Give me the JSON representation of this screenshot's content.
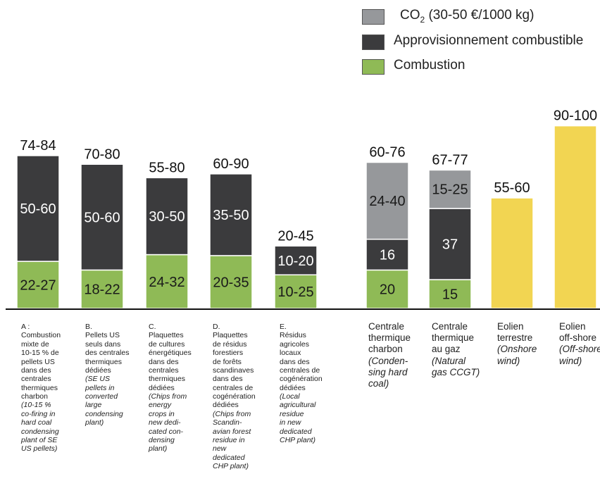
{
  "colors": {
    "co2": "#96989b",
    "supply": "#3b3b3d",
    "combustion": "#8fba56",
    "wind": "#f2d552"
  },
  "legend": [
    {
      "key": "co2",
      "label": "CO",
      "sub": "2",
      "label_rest": " (30-50  €/1000 kg)"
    },
    {
      "key": "supply",
      "label": "Approvisionnement combustible"
    },
    {
      "key": "combustion",
      "label": "Combustion"
    }
  ],
  "chart_data": {
    "type": "bar",
    "stacked": true,
    "grid": false,
    "categories": [
      "A",
      "B",
      "C",
      "D",
      "E",
      "Centrale thermique charbon",
      "Centrale thermique au gaz",
      "Eolien terrestre",
      "Eolien off-shore"
    ],
    "series": [
      {
        "name": "Combustion",
        "key": "combustion",
        "values": [
          24.5,
          20,
          28,
          27.5,
          17.5,
          20,
          15,
          null,
          null
        ],
        "labels": [
          "22-27",
          "18-22",
          "24-32",
          "20-35",
          "10-25",
          "20",
          "15",
          "",
          ""
        ]
      },
      {
        "name": "Approvisionnement combustible",
        "key": "supply",
        "values": [
          55,
          55,
          40,
          42.5,
          15,
          16,
          37,
          null,
          null
        ],
        "labels": [
          "50-60",
          "50-60",
          "30-50",
          "35-50",
          "10-20",
          "16",
          "37",
          "",
          ""
        ]
      },
      {
        "name": "CO2 (30-50 €/1000 kg)",
        "key": "co2",
        "values": [
          null,
          null,
          null,
          null,
          null,
          40,
          20,
          null,
          null
        ],
        "labels": [
          "",
          "",
          "",
          "",
          "",
          "24-40",
          "15-25",
          "",
          ""
        ]
      },
      {
        "name": "Eolien",
        "key": "wind",
        "values": [
          null,
          null,
          null,
          null,
          null,
          null,
          null,
          57.5,
          95
        ],
        "labels": [
          "",
          "",
          "",
          "",
          "",
          "",
          "",
          "",
          ""
        ]
      }
    ],
    "totals": [
      "74-84",
      "70-80",
      "55-80",
      "60-90",
      "20-45",
      "60-76",
      "67-77",
      "55-60",
      "90-100"
    ],
    "ylim": [
      0,
      100
    ]
  },
  "category_labels": [
    {
      "size": "small",
      "lines": [
        {
          "t": "A :",
          "i": false
        },
        {
          "t": "Combustion",
          "i": false
        },
        {
          "t": "mixte de",
          "i": false
        },
        {
          "t": "10-15 % de",
          "i": false
        },
        {
          "t": "pellets US",
          "i": false
        },
        {
          "t": "dans des",
          "i": false
        },
        {
          "t": "centrales",
          "i": false
        },
        {
          "t": "thermiques",
          "i": false
        },
        {
          "t": "charbon",
          "i": false
        },
        {
          "t": "(10-15 %",
          "i": true
        },
        {
          "t": "co-firing in",
          "i": true
        },
        {
          "t": "hard coal",
          "i": true
        },
        {
          "t": "condensing",
          "i": true
        },
        {
          "t": "plant of SE",
          "i": true
        },
        {
          "t": "US pellets)",
          "i": true
        }
      ]
    },
    {
      "size": "small",
      "lines": [
        {
          "t": "B.",
          "i": false
        },
        {
          "t": "Pellets US",
          "i": false
        },
        {
          "t": "seuls dans",
          "i": false
        },
        {
          "t": "des centrales",
          "i": false
        },
        {
          "t": " thermiques",
          "i": false
        },
        {
          "t": "dédiées",
          "i": false
        },
        {
          "t": "(SE US",
          "i": true
        },
        {
          "t": "pellets in",
          "i": true
        },
        {
          "t": "converted",
          "i": true
        },
        {
          "t": "large",
          "i": true
        },
        {
          "t": "condensing",
          "i": true
        },
        {
          "t": "plant)",
          "i": true
        }
      ]
    },
    {
      "size": "small",
      "lines": [
        {
          "t": "C.",
          "i": false
        },
        {
          "t": "Plaquettes",
          "i": false
        },
        {
          "t": "de cultures",
          "i": false
        },
        {
          "t": "énergétiques",
          "i": false
        },
        {
          "t": "dans des",
          "i": false
        },
        {
          "t": "centrales",
          "i": false
        },
        {
          "t": "thermiques",
          "i": false
        },
        {
          "t": "dédiées",
          "i": false
        },
        {
          "t": "(Chips from",
          "i": true
        },
        {
          "t": "energy",
          "i": true
        },
        {
          "t": "crops in",
          "i": true
        },
        {
          "t": "new dedi-",
          "i": true
        },
        {
          "t": "cated con-",
          "i": true
        },
        {
          "t": "densing",
          "i": true
        },
        {
          "t": "plant)",
          "i": true
        }
      ]
    },
    {
      "size": "small",
      "lines": [
        {
          "t": "D.",
          "i": false
        },
        {
          "t": "Plaquettes",
          "i": false
        },
        {
          "t": "de résidus",
          "i": false
        },
        {
          "t": "forestiers",
          "i": false
        },
        {
          "t": "de forêts",
          "i": false
        },
        {
          "t": "scandinaves",
          "i": false
        },
        {
          "t": "dans des",
          "i": false
        },
        {
          "t": "centrales de",
          "i": false
        },
        {
          "t": " cogénération",
          "i": false
        },
        {
          "t": "dédiées",
          "i": false
        },
        {
          "t": "(Chips from",
          "i": true
        },
        {
          "t": "Scandin-",
          "i": true
        },
        {
          "t": "avian forest",
          "i": true
        },
        {
          "t": "residue in",
          "i": true
        },
        {
          "t": "new",
          "i": true
        },
        {
          "t": "dedicated",
          "i": true
        },
        {
          "t": "CHP plant)",
          "i": true
        }
      ]
    },
    {
      "size": "small",
      "lines": [
        {
          "t": "E.",
          "i": false
        },
        {
          "t": "Résidus",
          "i": false
        },
        {
          "t": "agricoles",
          "i": false
        },
        {
          "t": "locaux",
          "i": false
        },
        {
          "t": "dans des",
          "i": false
        },
        {
          "t": "centrales de",
          "i": false
        },
        {
          "t": "cogénération",
          "i": false
        },
        {
          "t": "dédiées",
          "i": false
        },
        {
          "t": "(Local",
          "i": true
        },
        {
          "t": "agricultural",
          "i": true
        },
        {
          "t": "residue",
          "i": true
        },
        {
          "t": "in new",
          "i": true
        },
        {
          "t": "dedicated",
          "i": true
        },
        {
          "t": "CHP plant)",
          "i": true
        }
      ]
    },
    {
      "size": "large",
      "lines": [
        {
          "t": "Centrale",
          "i": false
        },
        {
          "t": "thermique",
          "i": false
        },
        {
          "t": "charbon",
          "i": false
        },
        {
          "t": "(Conden-",
          "i": true
        },
        {
          "t": "sing hard",
          "i": true
        },
        {
          "t": "coal)",
          "i": true
        }
      ]
    },
    {
      "size": "large",
      "lines": [
        {
          "t": "Centrale",
          "i": false
        },
        {
          "t": " thermique",
          "i": false
        },
        {
          "t": "au gaz",
          "i": false
        },
        {
          "t": "(Natural",
          "i": true
        },
        {
          "t": "gas CCGT)",
          "i": true
        }
      ]
    },
    {
      "size": "large",
      "lines": [
        {
          "t": "Eolien",
          "i": false
        },
        {
          "t": "terrestre",
          "i": false
        },
        {
          "t": "(Onshore",
          "i": true
        },
        {
          "t": "wind)",
          "i": true
        }
      ]
    },
    {
      "size": "large",
      "lines": [
        {
          "t": "Eolien",
          "i": false
        },
        {
          "t": "off-shore",
          "i": false
        },
        {
          "t": "(Off-shore",
          "i": true
        },
        {
          "t": "wind)",
          "i": true
        }
      ]
    }
  ]
}
